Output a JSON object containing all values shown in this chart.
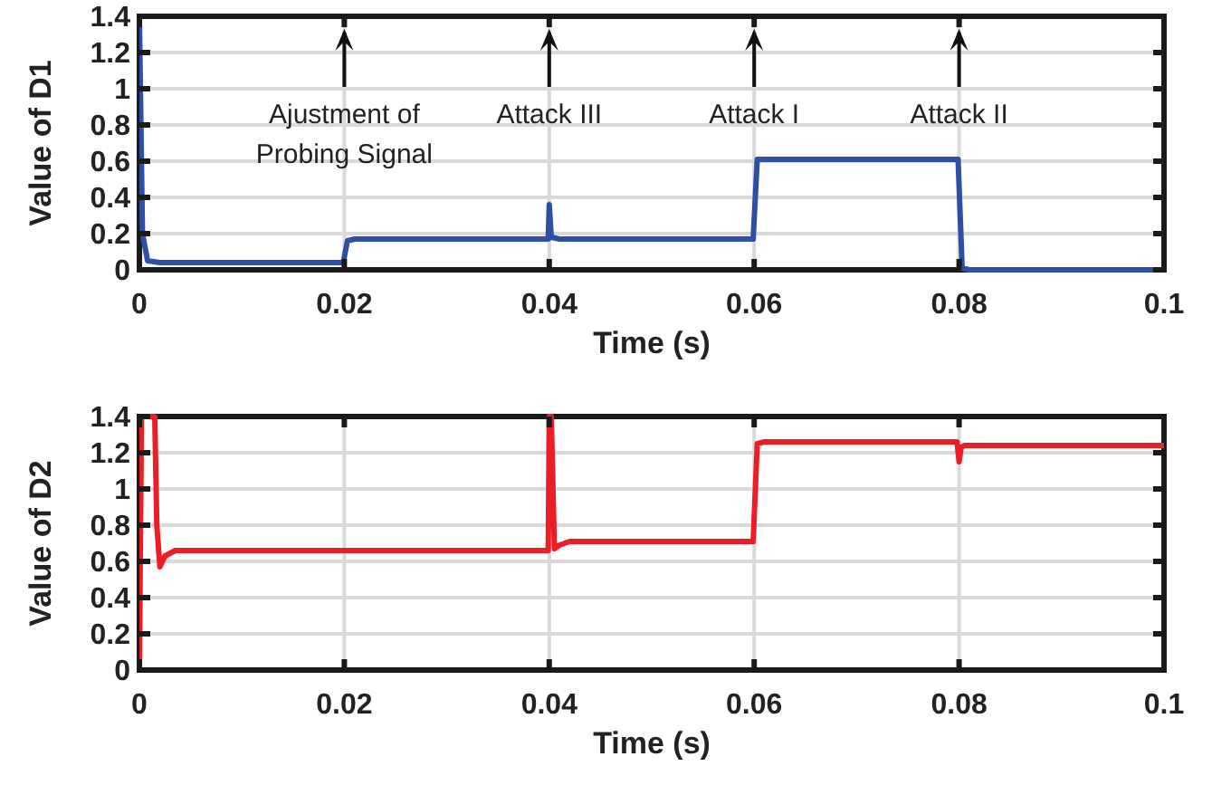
{
  "chart_data": [
    {
      "type": "line",
      "xlabel": "Time (s)",
      "ylabel": "Value of D1",
      "xlim": [
        0,
        0.1
      ],
      "ylim": [
        0,
        1.4
      ],
      "xticks": [
        0,
        0.02,
        0.04,
        0.06,
        0.08,
        0.1
      ],
      "yticks": [
        0,
        0.2,
        0.4,
        0.6,
        0.8,
        1,
        1.2,
        1.4
      ],
      "grid": true,
      "line_style": "solid",
      "series": [
        {
          "color": "#2e4fa8",
          "x": [
            0,
            0.0003,
            0.0008,
            0.002,
            0.0199,
            0.0203,
            0.021,
            0.0399,
            0.04,
            0.0402,
            0.041,
            0.0599,
            0.0603,
            0.061,
            0.0799,
            0.0803,
            0.081,
            0.1
          ],
          "values": [
            1.4,
            0.2,
            0.05,
            0.04,
            0.04,
            0.16,
            0.17,
            0.17,
            0.36,
            0.18,
            0.17,
            0.17,
            0.61,
            0.61,
            0.61,
            0.01,
            0,
            0
          ]
        }
      ],
      "annotations": [
        "Ajustment of\nProbing Signal",
        "Attack III",
        "Attack I",
        "Attack II"
      ]
    },
    {
      "type": "line",
      "xlabel": "Time (s)",
      "ylabel": "Value of D2",
      "xlim": [
        0,
        0.1
      ],
      "ylim": [
        0,
        1.4
      ],
      "xticks": [
        0,
        0.02,
        0.04,
        0.06,
        0.08,
        0.1
      ],
      "yticks": [
        0,
        0.2,
        0.4,
        0.6,
        0.8,
        1,
        1.2,
        1.4
      ],
      "grid": true,
      "line_style": "solid",
      "series": [
        {
          "color": "#ee1c25",
          "x": [
            0,
            0.0002,
            0.0004,
            0.0015,
            0.0017,
            0.002,
            0.0025,
            0.0035,
            0.02,
            0.0399,
            0.04,
            0.0402,
            0.0405,
            0.041,
            0.042,
            0.05,
            0.0599,
            0.0603,
            0.061,
            0.0798,
            0.08,
            0.0802,
            0.0805,
            0.1
          ],
          "values": [
            0,
            1.4,
            1.4,
            1.4,
            0.8,
            0.57,
            0.63,
            0.66,
            0.66,
            0.66,
            1.4,
            1.4,
            0.67,
            0.69,
            0.71,
            0.71,
            0.71,
            1.25,
            1.26,
            1.26,
            1.15,
            1.23,
            1.24,
            1.24
          ]
        }
      ]
    }
  ]
}
